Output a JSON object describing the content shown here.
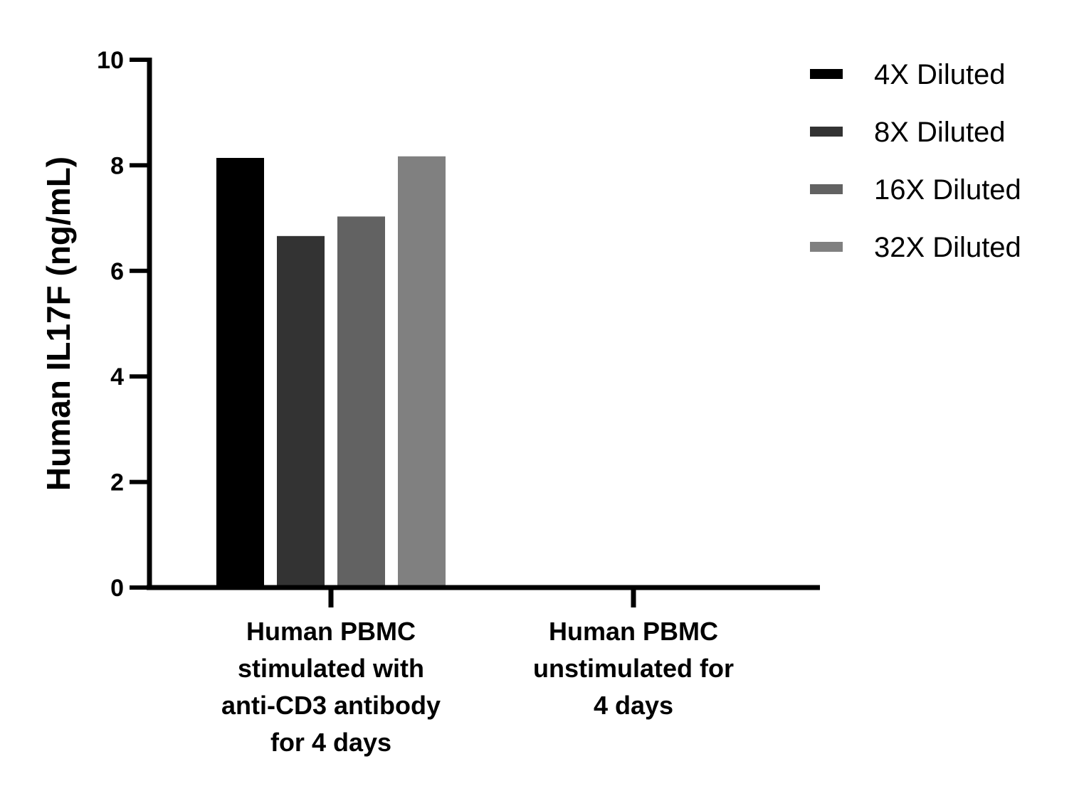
{
  "chart_data": {
    "type": "bar",
    "title": "",
    "xlabel": "",
    "ylabel": "Human IL17F  (ng/mL)",
    "ylim": [
      0,
      10
    ],
    "yticks": [
      "0",
      "2",
      "4",
      "6",
      "8",
      "10"
    ],
    "grid": false,
    "legend_position": "top-right",
    "categories": [
      [
        "Human PBMC",
        "stimulated with",
        "anti-CD3 antibody",
        "for 4 days"
      ],
      [
        "Human PBMC",
        "unstimulated for",
        "4 days"
      ]
    ],
    "series": [
      {
        "name": "4X Diluted",
        "color": "#000000",
        "values": [
          8.14,
          0
        ]
      },
      {
        "name": "8X Diluted",
        "color": "#333333",
        "values": [
          6.66,
          0
        ]
      },
      {
        "name": "16X Diluted",
        "color": "#626262",
        "values": [
          7.03,
          0
        ]
      },
      {
        "name": "32X Diluted",
        "color": "#808080",
        "values": [
          8.17,
          0
        ]
      }
    ]
  }
}
